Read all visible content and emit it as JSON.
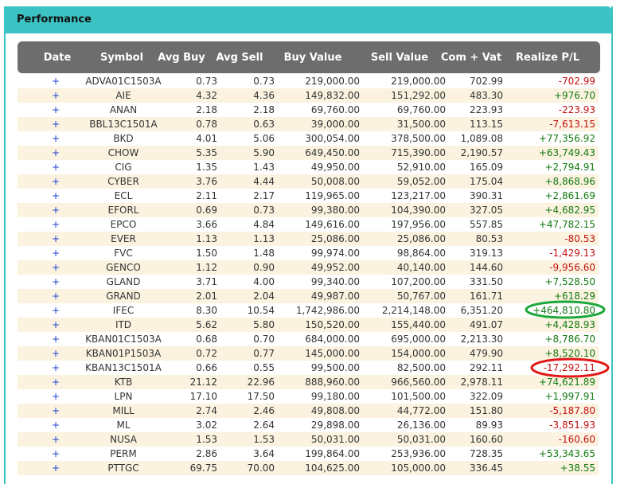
{
  "panel": {
    "title": "Performance"
  },
  "table": {
    "headers": [
      "Date",
      "Symbol",
      "Avg Buy",
      "Avg Sell",
      "Buy Value",
      "Sell Value",
      "Com + Vat",
      "Realize P/L"
    ],
    "rows": [
      [
        "+",
        "ADVA01C1503A",
        "0.73",
        "0.73",
        "219,000.00",
        "219,000.00",
        "702.99",
        "-702.99"
      ],
      [
        "+",
        "AIE",
        "4.32",
        "4.36",
        "149,832.00",
        "151,292.00",
        "483.30",
        "+976.70"
      ],
      [
        "+",
        "ANAN",
        "2.18",
        "2.18",
        "69,760.00",
        "69,760.00",
        "223.93",
        "-223.93"
      ],
      [
        "+",
        "BBL13C1501A",
        "0.78",
        "0.63",
        "39,000.00",
        "31,500.00",
        "113.15",
        "-7,613.15"
      ],
      [
        "+",
        "BKD",
        "4.01",
        "5.06",
        "300,054.00",
        "378,500.00",
        "1,089.08",
        "+77,356.92"
      ],
      [
        "+",
        "CHOW",
        "5.35",
        "5.90",
        "649,450.00",
        "715,390.00",
        "2,190.57",
        "+63,749.43"
      ],
      [
        "+",
        "CIG",
        "1.35",
        "1.43",
        "49,950.00",
        "52,910.00",
        "165.09",
        "+2,794.91"
      ],
      [
        "+",
        "CYBER",
        "3.76",
        "4.44",
        "50,008.00",
        "59,052.00",
        "175.04",
        "+8,868.96"
      ],
      [
        "+",
        "ECL",
        "2.11",
        "2.17",
        "119,965.00",
        "123,217.00",
        "390.31",
        "+2,861.69"
      ],
      [
        "+",
        "EFORL",
        "0.69",
        "0.73",
        "99,380.00",
        "104,390.00",
        "327.05",
        "+4,682.95"
      ],
      [
        "+",
        "EPCO",
        "3.66",
        "4.84",
        "149,616.00",
        "197,956.00",
        "557.85",
        "+47,782.15"
      ],
      [
        "+",
        "EVER",
        "1.13",
        "1.13",
        "25,086.00",
        "25,086.00",
        "80.53",
        "-80.53"
      ],
      [
        "+",
        "FVC",
        "1.50",
        "1.48",
        "99,974.00",
        "98,864.00",
        "319.13",
        "-1,429.13"
      ],
      [
        "+",
        "GENCO",
        "1.12",
        "0.90",
        "49,952.00",
        "40,140.00",
        "144.60",
        "-9,956.60"
      ],
      [
        "+",
        "GLAND",
        "3.71",
        "4.00",
        "99,340.00",
        "107,200.00",
        "331.50",
        "+7,528.50"
      ],
      [
        "+",
        "GRAND",
        "2.01",
        "2.04",
        "49,987.00",
        "50,767.00",
        "161.71",
        "+618.29"
      ],
      [
        "+",
        "IFEC",
        "8.30",
        "10.54",
        "1,742,986.00",
        "2,214,148.00",
        "6,351.20",
        "+464,810.80"
      ],
      [
        "+",
        "ITD",
        "5.62",
        "5.80",
        "150,520.00",
        "155,440.00",
        "491.07",
        "+4,428.93"
      ],
      [
        "+",
        "KBAN01C1503A",
        "0.68",
        "0.70",
        "684,000.00",
        "695,000.00",
        "2,213.30",
        "+8,786.70"
      ],
      [
        "+",
        "KBAN01P1503A",
        "0.72",
        "0.77",
        "145,000.00",
        "154,000.00",
        "479.90",
        "+8,520.10"
      ],
      [
        "+",
        "KBAN13C1501A",
        "0.66",
        "0.55",
        "99,500.00",
        "82,500.00",
        "292.11",
        "-17,292.11"
      ],
      [
        "+",
        "KTB",
        "21.12",
        "22.96",
        "888,960.00",
        "966,560.00",
        "2,978.11",
        "+74,621.89"
      ],
      [
        "+",
        "LPN",
        "17.10",
        "17.50",
        "99,180.00",
        "101,500.00",
        "322.09",
        "+1,997.91"
      ],
      [
        "+",
        "MILL",
        "2.74",
        "2.46",
        "49,808.00",
        "44,772.00",
        "151.80",
        "-5,187.80"
      ],
      [
        "+",
        "ML",
        "3.02",
        "2.64",
        "29,898.00",
        "26,136.00",
        "89.93",
        "-3,851.93"
      ],
      [
        "+",
        "NUSA",
        "1.53",
        "1.53",
        "50,031.00",
        "50,031.00",
        "160.60",
        "-160.60"
      ],
      [
        "+",
        "PERM",
        "2.86",
        "3.64",
        "199,864.00",
        "253,936.00",
        "728.35",
        "+53,343.65"
      ],
      [
        "+",
        "PTTGC",
        "69.75",
        "70.00",
        "104,625.00",
        "105,000.00",
        "336.45",
        "+38.55"
      ]
    ]
  }
}
